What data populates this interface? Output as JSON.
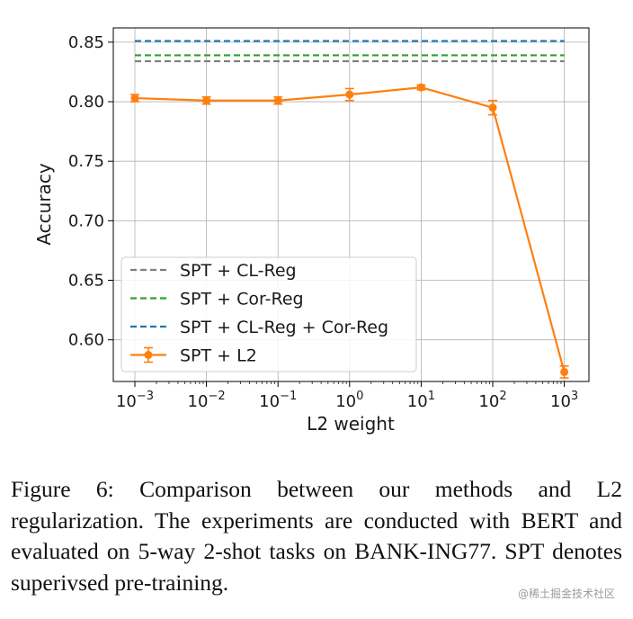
{
  "chart_data": {
    "type": "line",
    "xscale": "log",
    "xlabel": "L2 weight",
    "ylabel": "Accuracy",
    "ylim": [
      0.565,
      0.862
    ],
    "yticks": [
      "0.60",
      "0.65",
      "0.70",
      "0.75",
      "0.80",
      "0.85"
    ],
    "xticks": [
      {
        "base": "10",
        "exp": "−3"
      },
      {
        "base": "10",
        "exp": "−2"
      },
      {
        "base": "10",
        "exp": "−1"
      },
      {
        "base": "10",
        "exp": "0"
      },
      {
        "base": "10",
        "exp": "1"
      },
      {
        "base": "10",
        "exp": "2"
      },
      {
        "base": "10",
        "exp": "3"
      }
    ],
    "grid": true,
    "legend_position": "lower-left",
    "baselines": [
      {
        "name": "SPT + CL-Reg",
        "value": 0.834,
        "color": "#7f7f7f"
      },
      {
        "name": "SPT + Cor-Reg",
        "value": 0.839,
        "color": "#2ca02c"
      },
      {
        "name": "SPT + CL-Reg + Cor-Reg",
        "value": 0.851,
        "color": "#1f77b4"
      }
    ],
    "series": [
      {
        "name": "SPT + L2",
        "color": "#ff7f0e",
        "x_exp": [
          -3,
          -2,
          -1,
          0,
          1,
          2,
          3
        ],
        "values": [
          0.803,
          0.801,
          0.801,
          0.806,
          0.812,
          0.795,
          0.573
        ],
        "errors": [
          0.003,
          0.003,
          0.003,
          0.005,
          0.002,
          0.006,
          0.005
        ]
      }
    ]
  },
  "caption": "Figure 6:  Comparison between our methods and L2 regularization.  The experiments are conducted with BERT and evaluated on 5-way 2-shot tasks on BANK-ING77. SPT denotes superivsed pre-training.",
  "watermark": "@稀土掘金技术社区"
}
